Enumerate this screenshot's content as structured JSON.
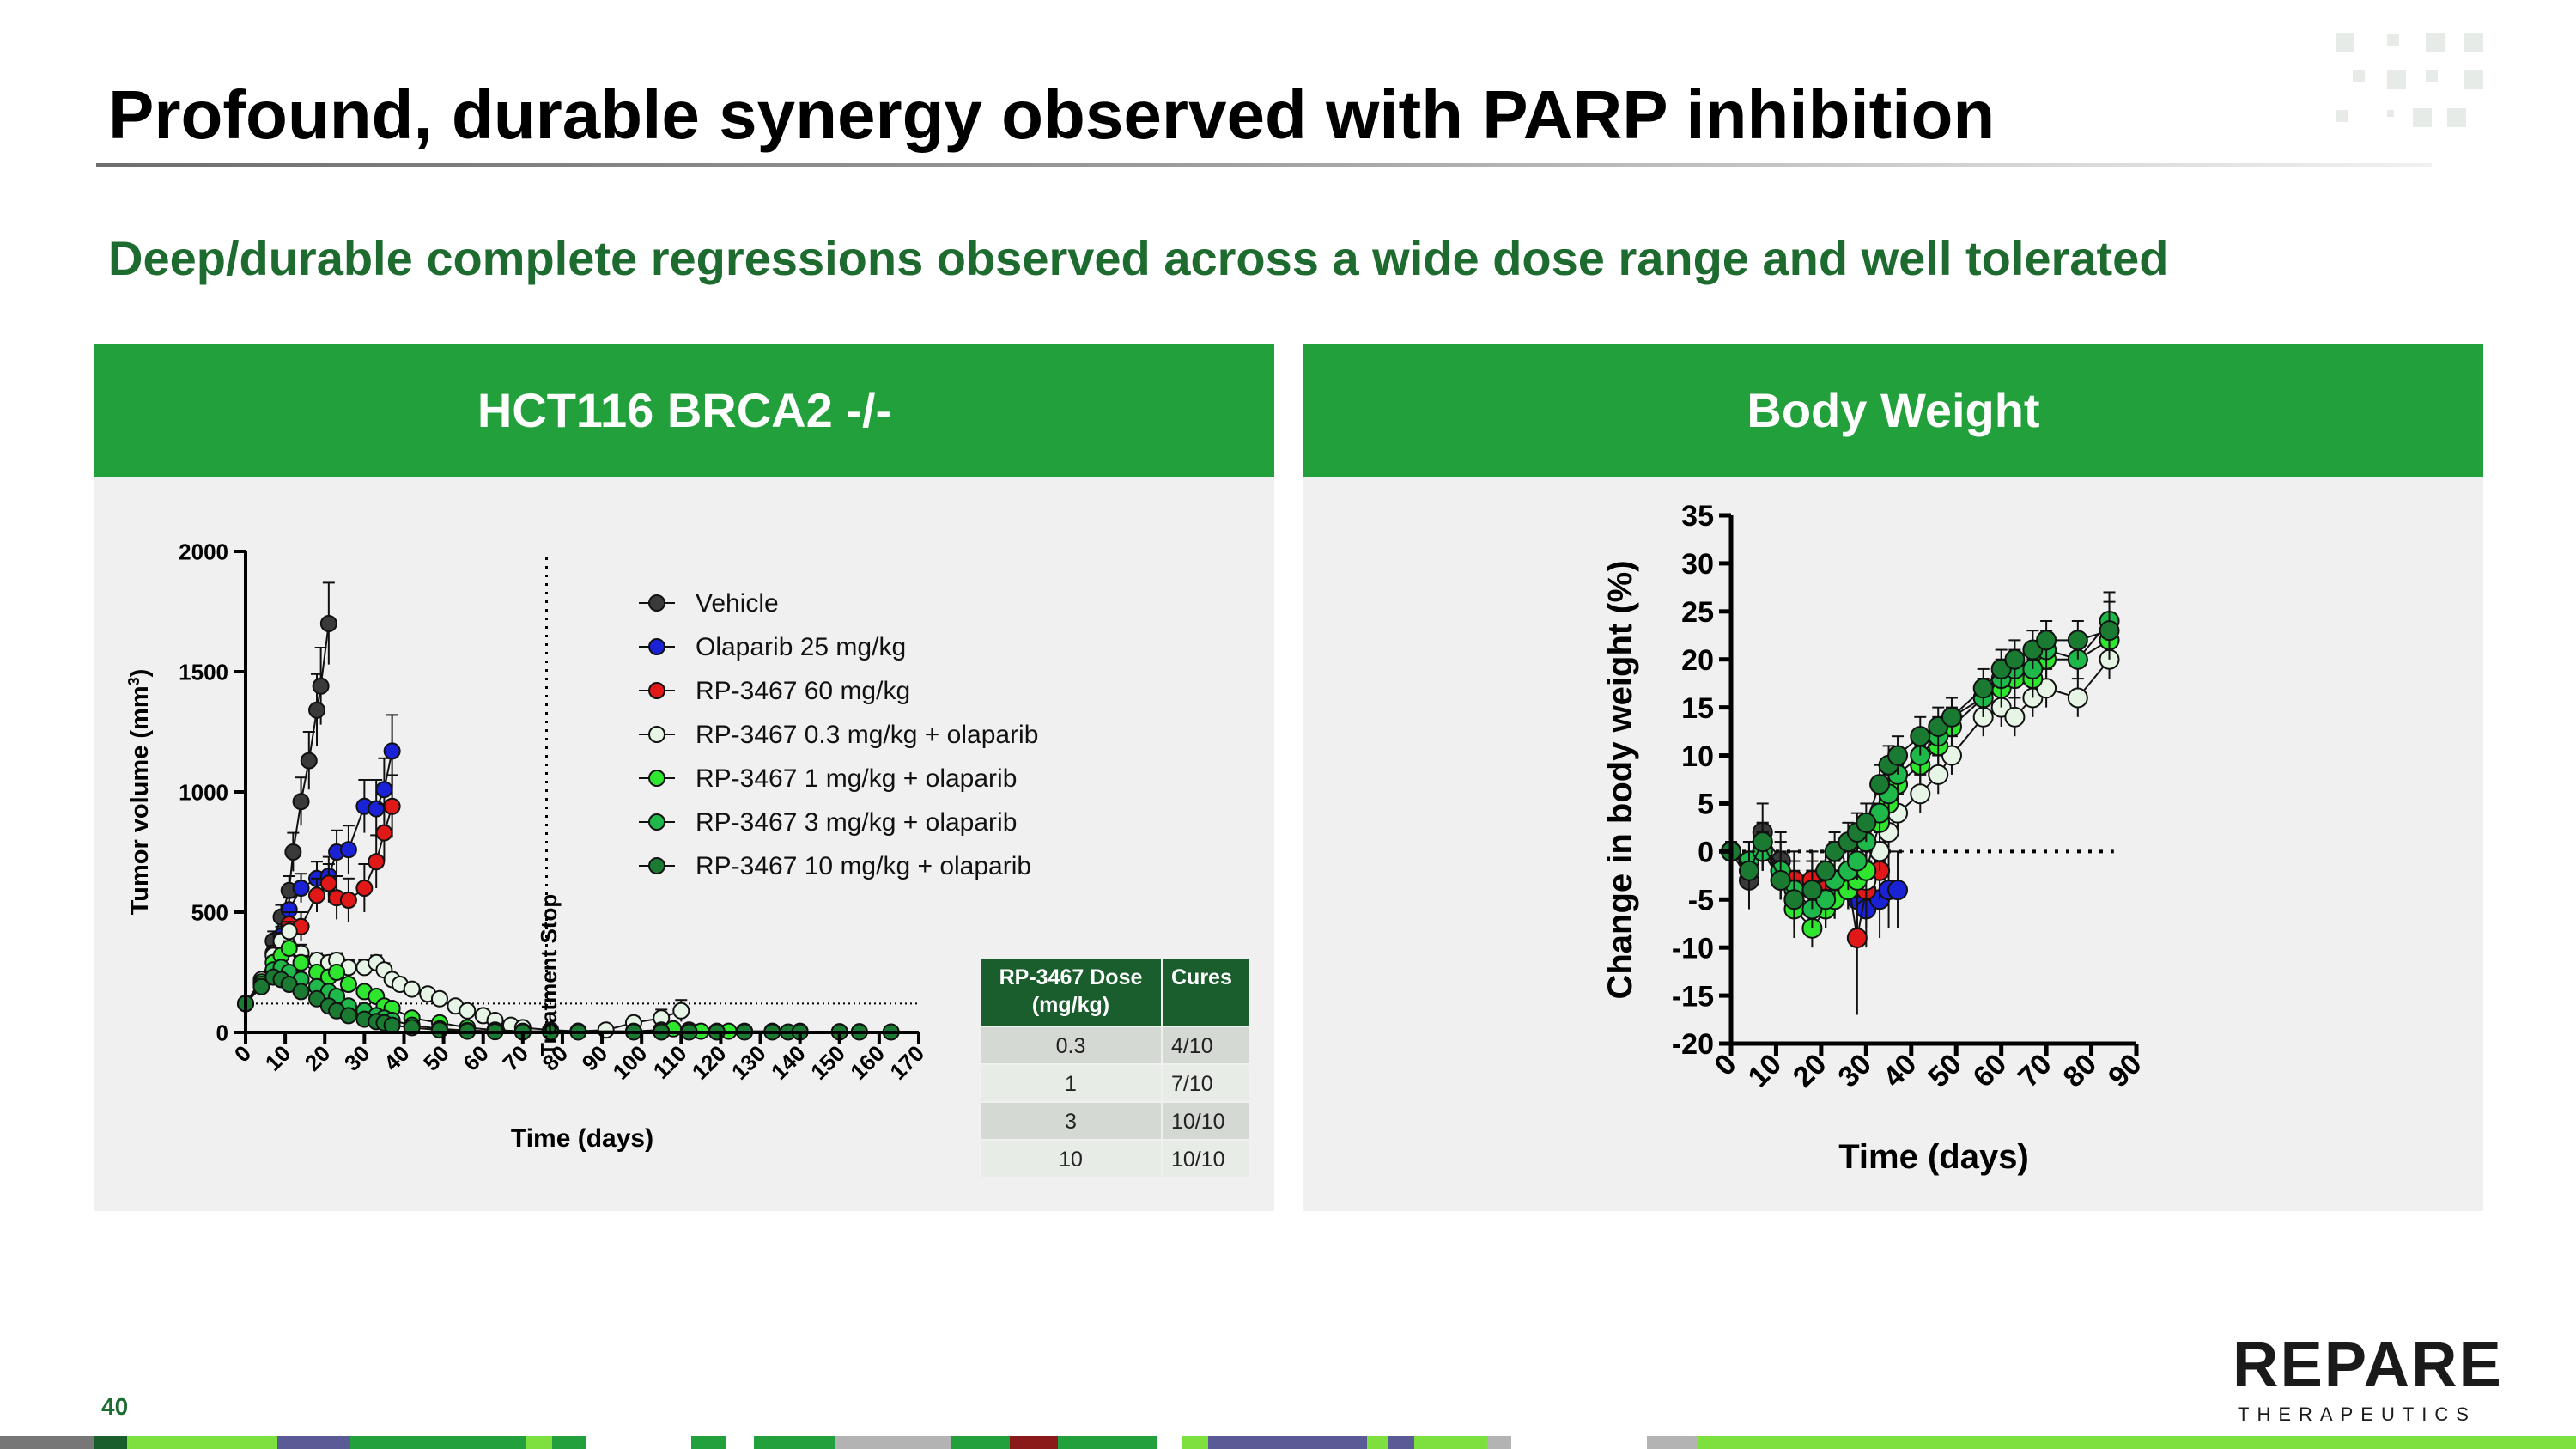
{
  "title": "Profound, durable synergy observed with PARP inhibition",
  "subtitle": "Deep/durable complete regressions observed across a wide dose range and well tolerated",
  "page_number": "40",
  "logo": {
    "main": "REPARE",
    "sub": "THERAPEUTICS"
  },
  "colors": {
    "brand_green": "#22a03b",
    "dark_green": "#1e6b30",
    "vehicle": "#3a3a3a",
    "olaparib": "#1a22d6",
    "rp60": "#e01818",
    "combo03": "#e6f5e6",
    "combo1": "#2ee62e",
    "combo3": "#1fb84a",
    "combo10": "#1a7a32"
  },
  "left_panel": {
    "header": "HCT116 BRCA2 -/-",
    "annotation": "Treatment Stop"
  },
  "right_panel": {
    "header": "Body Weight"
  },
  "cures_table": {
    "headers": [
      "RP-3467 Dose (mg/kg)",
      "Cures"
    ],
    "rows": [
      [
        "0.3",
        "4/10"
      ],
      [
        "1",
        "7/10"
      ],
      [
        "3",
        "10/10"
      ],
      [
        "10",
        "10/10"
      ]
    ]
  },
  "chart_data": [
    {
      "type": "line",
      "xlabel": "Time (days)",
      "ylabel": "Tumor volume (mm3)",
      "xlim": [
        0,
        170
      ],
      "ylim": [
        0,
        2000
      ],
      "xticks": [
        0,
        10,
        20,
        30,
        40,
        50,
        60,
        70,
        80,
        90,
        100,
        110,
        120,
        130,
        140,
        150,
        160,
        170
      ],
      "yticks": [
        0,
        500,
        1000,
        1500,
        2000
      ],
      "treatment_stop_day": 76,
      "reference_line_y": 120,
      "legend_placement": "top-right",
      "series": [
        {
          "name": "Vehicle",
          "color": "#3a3a3a",
          "x": [
            0,
            4,
            7,
            9,
            11,
            12,
            14,
            16,
            18,
            19,
            21
          ],
          "y": [
            120,
            200,
            380,
            480,
            590,
            750,
            960,
            1130,
            1340,
            1440,
            1700
          ],
          "err": [
            10,
            25,
            40,
            50,
            60,
            80,
            100,
            120,
            150,
            160,
            170
          ]
        },
        {
          "name": "Olaparib 25 mg/kg",
          "color": "#1a22d6",
          "x": [
            0,
            4,
            7,
            9,
            11,
            14,
            18,
            21,
            23,
            26,
            30,
            33,
            35,
            37
          ],
          "y": [
            120,
            200,
            330,
            400,
            510,
            600,
            640,
            650,
            750,
            760,
            940,
            930,
            1010,
            1170
          ],
          "err": [
            10,
            20,
            30,
            40,
            50,
            60,
            70,
            80,
            90,
            100,
            110,
            120,
            130,
            150
          ]
        },
        {
          "name": "RP-3467 60 mg/kg",
          "color": "#e01818",
          "x": [
            0,
            4,
            7,
            9,
            11,
            14,
            18,
            21,
            23,
            26,
            30,
            33,
            35,
            37
          ],
          "y": [
            120,
            210,
            330,
            370,
            450,
            440,
            570,
            620,
            560,
            550,
            600,
            710,
            830,
            940
          ],
          "err": [
            10,
            20,
            30,
            40,
            50,
            60,
            70,
            80,
            90,
            90,
            100,
            110,
            120,
            130
          ]
        },
        {
          "name": "RP-3467 0.3 mg/kg + olaparib",
          "color": "#e6f5e6",
          "x": [
            0,
            4,
            7,
            9,
            11,
            14,
            18,
            21,
            23,
            26,
            30,
            33,
            35,
            37,
            39,
            42,
            46,
            49,
            53,
            56,
            60,
            63,
            67,
            70,
            77,
            84,
            91,
            98,
            105,
            110
          ],
          "y": [
            120,
            220,
            320,
            380,
            420,
            330,
            300,
            290,
            300,
            270,
            270,
            290,
            260,
            220,
            200,
            180,
            160,
            140,
            110,
            90,
            70,
            50,
            30,
            20,
            10,
            5,
            10,
            40,
            60,
            90
          ],
          "err": [
            10,
            20,
            30,
            35,
            40,
            35,
            30,
            30,
            30,
            30,
            30,
            30,
            28,
            25,
            22,
            20,
            18,
            16,
            14,
            12,
            10,
            8,
            6,
            5,
            5,
            5,
            10,
            25,
            35,
            45
          ]
        },
        {
          "name": "RP-3467 1 mg/kg + olaparib",
          "color": "#2ee62e",
          "x": [
            0,
            4,
            7,
            9,
            11,
            14,
            18,
            21,
            23,
            26,
            30,
            33,
            35,
            37,
            42,
            49,
            56,
            63,
            70,
            77,
            84,
            98,
            105,
            108,
            112,
            115,
            119,
            122,
            126,
            133,
            140
          ],
          "y": [
            120,
            210,
            290,
            320,
            350,
            290,
            250,
            230,
            250,
            200,
            170,
            150,
            110,
            100,
            60,
            40,
            20,
            10,
            5,
            5,
            5,
            5,
            10,
            15,
            10,
            5,
            5,
            5,
            5,
            5,
            5
          ],
          "err": [
            10,
            20,
            25,
            30,
            30,
            28,
            25,
            24,
            25,
            22,
            20,
            18,
            15,
            14,
            10,
            8,
            5,
            4,
            3,
            3,
            3,
            3,
            5,
            6,
            5,
            3,
            3,
            3,
            3,
            3,
            3
          ]
        },
        {
          "name": "RP-3467 3 mg/kg + olaparib",
          "color": "#1fb84a",
          "x": [
            0,
            4,
            7,
            9,
            11,
            14,
            18,
            21,
            23,
            26,
            30,
            33,
            35,
            37,
            42,
            49,
            56,
            63,
            70,
            77,
            84,
            98,
            105,
            112,
            119,
            126,
            133,
            140,
            150,
            155
          ],
          "y": [
            120,
            200,
            260,
            270,
            250,
            220,
            190,
            170,
            150,
            110,
            90,
            70,
            60,
            50,
            30,
            15,
            8,
            5,
            3,
            3,
            3,
            3,
            3,
            3,
            3,
            3,
            3,
            3,
            3,
            3
          ],
          "err": [
            10,
            18,
            22,
            24,
            22,
            20,
            18,
            16,
            14,
            12,
            10,
            8,
            7,
            6,
            5,
            3,
            2,
            2,
            2,
            2,
            2,
            2,
            2,
            2,
            2,
            2,
            2,
            2,
            2,
            2
          ]
        },
        {
          "name": "RP-3467 10 mg/kg + olaparib",
          "color": "#1a7a32",
          "x": [
            0,
            4,
            7,
            9,
            11,
            14,
            18,
            21,
            23,
            26,
            30,
            33,
            35,
            37,
            42,
            49,
            56,
            63,
            70,
            77,
            84,
            98,
            105,
            112,
            119,
            126,
            133,
            137,
            140,
            150,
            155,
            163
          ],
          "y": [
            120,
            190,
            230,
            220,
            200,
            170,
            140,
            110,
            90,
            70,
            55,
            45,
            40,
            30,
            20,
            10,
            5,
            3,
            2,
            2,
            2,
            2,
            2,
            2,
            2,
            2,
            2,
            2,
            2,
            2,
            2,
            2
          ],
          "err": [
            10,
            16,
            18,
            17,
            16,
            14,
            12,
            10,
            9,
            7,
            6,
            5,
            4,
            3,
            2,
            2,
            1,
            1,
            1,
            1,
            1,
            1,
            1,
            1,
            1,
            1,
            1,
            1,
            1,
            1,
            1,
            1
          ]
        }
      ]
    },
    {
      "type": "line",
      "xlabel": "Time (days)",
      "ylabel": "Change in body weight (%)",
      "xlim": [
        0,
        90
      ],
      "ylim": [
        -20,
        35
      ],
      "xticks": [
        0,
        10,
        20,
        30,
        40,
        50,
        60,
        70,
        80,
        90
      ],
      "yticks": [
        -20,
        -15,
        -10,
        -5,
        0,
        5,
        10,
        15,
        20,
        25,
        30,
        35
      ],
      "reference_line_y": 0,
      "reference_line_x_range": [
        0,
        85
      ],
      "series": [
        {
          "name": "Vehicle",
          "color": "#3a3a3a",
          "x": [
            0,
            4,
            7,
            11,
            14,
            18,
            21,
            23
          ],
          "y": [
            0,
            -3,
            2,
            -1,
            -5,
            -3,
            -4,
            -2
          ],
          "err": [
            1,
            3,
            3,
            3,
            4,
            3,
            4,
            3
          ]
        },
        {
          "name": "Olaparib 25 mg/kg",
          "color": "#1a22d6",
          "x": [
            0,
            4,
            7,
            11,
            14,
            18,
            21,
            23,
            26,
            28,
            30,
            33,
            35,
            37
          ],
          "y": [
            0,
            -1,
            0,
            -2,
            -3,
            -4,
            -5,
            -4,
            -3,
            -5,
            -6,
            -5,
            -4,
            -4
          ],
          "err": [
            1,
            2,
            2,
            3,
            3,
            3,
            3,
            3,
            3,
            4,
            4,
            4,
            4,
            4
          ]
        },
        {
          "name": "RP-3467 60 mg/kg",
          "color": "#e01818",
          "x": [
            0,
            4,
            7,
            11,
            14,
            18,
            21,
            23,
            26,
            28,
            30,
            33
          ],
          "y": [
            0,
            -1,
            1,
            -2,
            -3,
            -3,
            -4,
            -4,
            -3,
            -9,
            -4,
            -2
          ],
          "err": [
            1,
            2,
            2,
            3,
            3,
            3,
            3,
            3,
            3,
            8,
            4,
            3
          ]
        },
        {
          "name": "RP-3467 0.3 mg/kg + olaparib",
          "color": "#e6f5e6",
          "x": [
            0,
            4,
            7,
            11,
            14,
            18,
            21,
            23,
            26,
            28,
            30,
            33,
            35,
            37,
            42,
            46,
            49,
            56,
            60,
            63,
            67,
            70,
            77,
            84
          ],
          "y": [
            0,
            -1,
            0,
            -3,
            -5,
            -4,
            -2,
            -1,
            -2,
            -1,
            -3,
            0,
            2,
            4,
            6,
            8,
            10,
            14,
            15,
            14,
            16,
            17,
            16,
            20
          ],
          "err": [
            1,
            2,
            2,
            2,
            2,
            2,
            2,
            2,
            2,
            2,
            2,
            2,
            2,
            2,
            2,
            2,
            2,
            2,
            2,
            2,
            2,
            2,
            2,
            2
          ]
        },
        {
          "name": "RP-3467 1 mg/kg + olaparib",
          "color": "#2ee62e",
          "x": [
            0,
            4,
            7,
            11,
            14,
            18,
            21,
            23,
            26,
            28,
            30,
            33,
            35,
            37,
            42,
            46,
            49,
            56,
            60,
            63,
            67,
            70,
            77,
            84
          ],
          "y": [
            0,
            -1,
            0,
            -3,
            -6,
            -8,
            -6,
            -5,
            -4,
            -3,
            -2,
            3,
            5,
            7,
            9,
            11,
            13,
            16,
            17,
            18,
            18,
            20,
            20,
            22
          ],
          "err": [
            1,
            2,
            2,
            2,
            2,
            2,
            2,
            2,
            2,
            2,
            2,
            2,
            2,
            2,
            2,
            2,
            2,
            2,
            2,
            2,
            2,
            2,
            2,
            2
          ]
        },
        {
          "name": "RP-3467 3 mg/kg + olaparib",
          "color": "#1fb84a",
          "x": [
            0,
            4,
            7,
            11,
            14,
            18,
            21,
            23,
            26,
            28,
            30,
            33,
            35,
            37,
            42,
            46,
            49,
            56,
            60,
            63,
            67,
            70,
            77,
            84
          ],
          "y": [
            0,
            -1,
            0,
            -2,
            -4,
            -6,
            -5,
            -3,
            -2,
            -1,
            1,
            4,
            6,
            8,
            10,
            12,
            14,
            16,
            18,
            19,
            19,
            21,
            20,
            24
          ],
          "err": [
            1,
            2,
            2,
            2,
            2,
            2,
            2,
            2,
            2,
            2,
            2,
            2,
            2,
            2,
            2,
            2,
            2,
            2,
            2,
            2,
            2,
            2,
            2,
            3
          ]
        },
        {
          "name": "RP-3467 10 mg/kg + olaparib",
          "color": "#1a7a32",
          "x": [
            0,
            4,
            7,
            11,
            14,
            18,
            21,
            23,
            26,
            28,
            30,
            33,
            35,
            37,
            42,
            46,
            49,
            56,
            60,
            63,
            67,
            70,
            77,
            84
          ],
          "y": [
            0,
            -2,
            1,
            -3,
            -5,
            -4,
            -2,
            0,
            1,
            2,
            3,
            7,
            9,
            10,
            12,
            13,
            14,
            17,
            19,
            20,
            21,
            22,
            22,
            23
          ],
          "err": [
            1,
            2,
            2,
            2,
            2,
            2,
            2,
            2,
            2,
            2,
            2,
            2,
            2,
            2,
            2,
            2,
            2,
            2,
            2,
            2,
            2,
            2,
            2,
            3
          ]
        }
      ]
    }
  ]
}
